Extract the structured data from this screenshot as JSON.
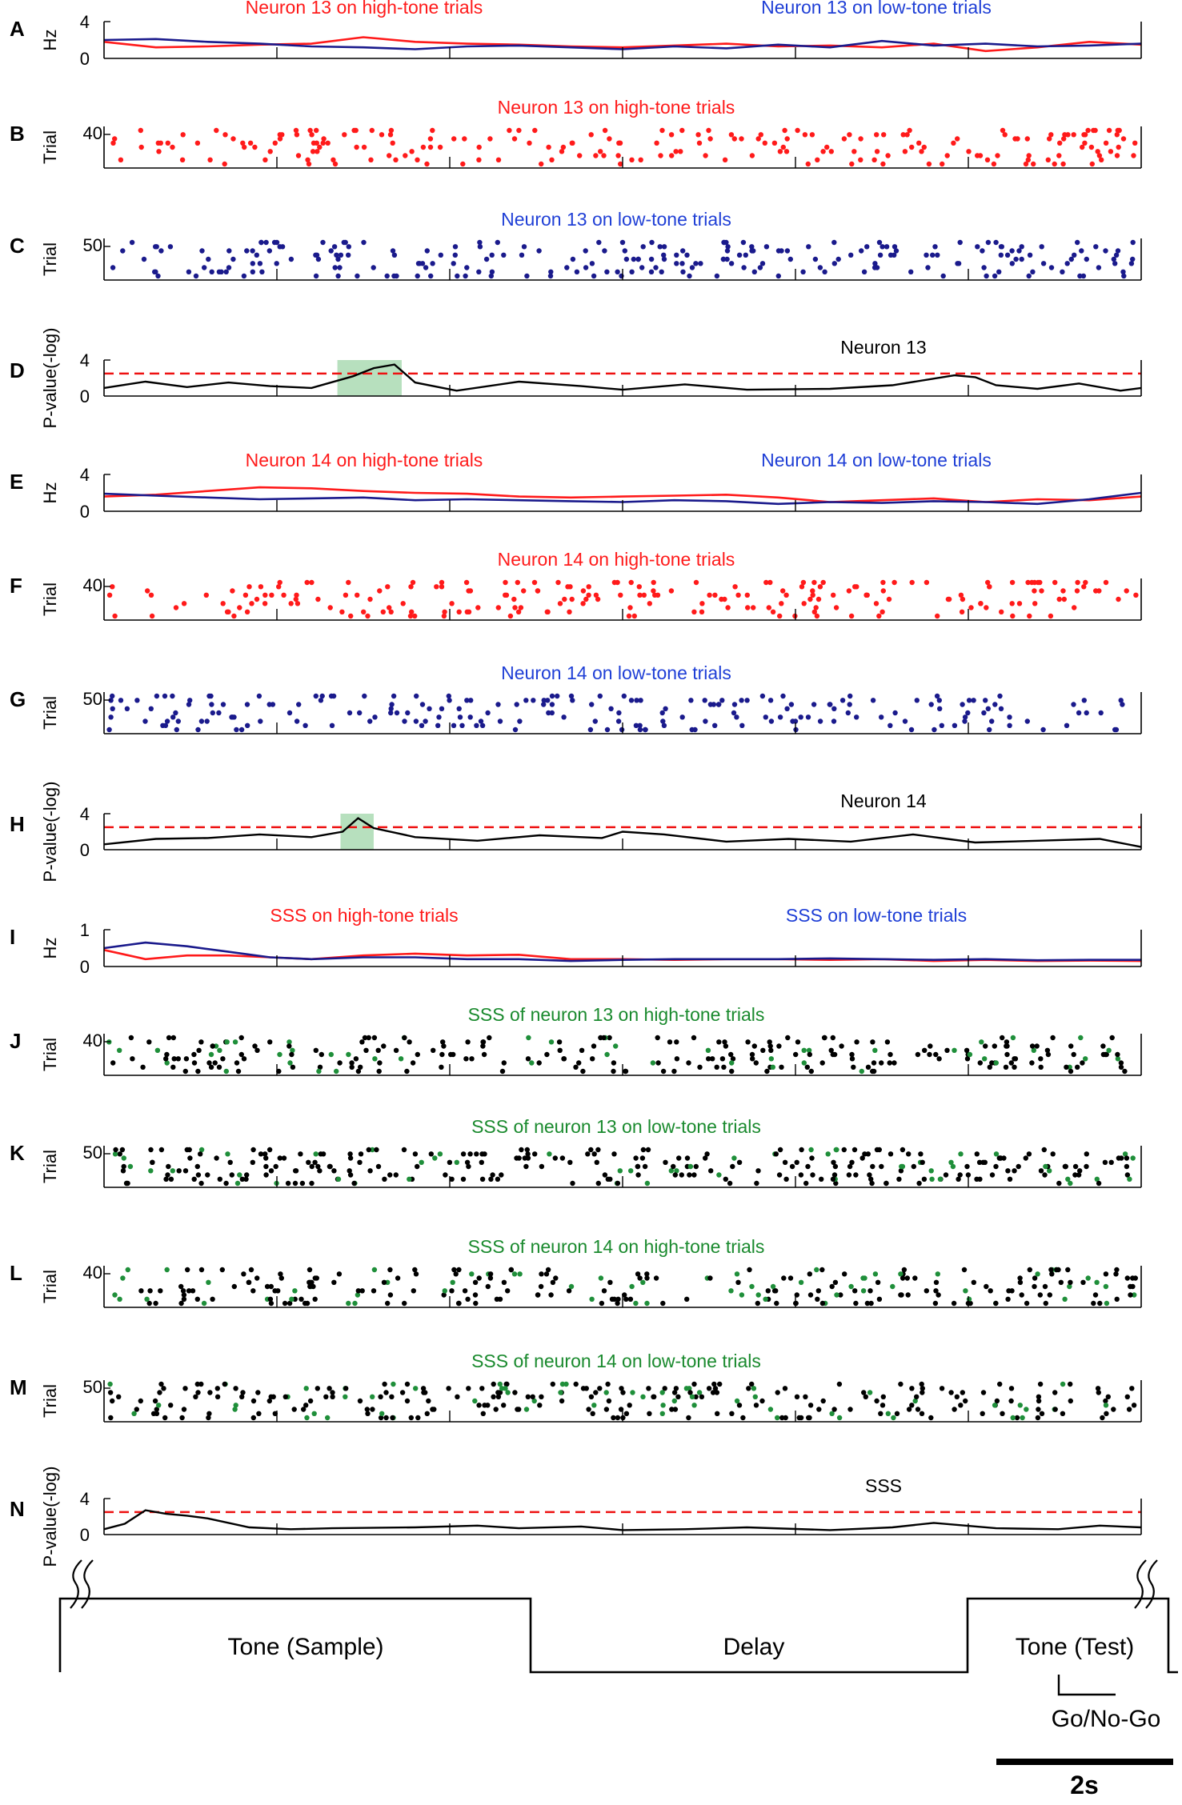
{
  "colors": {
    "high": "#ff1a1a",
    "low": "#1a1a8c",
    "low_title": "#1f3fd6",
    "sss_title": "#1a8a2e",
    "sss_green": "#1f8f3a",
    "black": "#000000",
    "threshold": "#ee1111",
    "highlight": "#9fd6a8"
  },
  "n_time_divisions": 6,
  "panels": [
    {
      "letter": "A",
      "kind": "rate",
      "ylabel": "Hz",
      "ytick_top": "4",
      "ytick_bottom": "0",
      "ylim": [
        0,
        4
      ],
      "title_left": "Neuron 13 on high-tone trials",
      "title_right": "Neuron 13 on low-tone trials",
      "series": [
        {
          "name": "Neuron 13 on high-tone trials",
          "color": "#ff1a1a",
          "x": [
            0.0,
            0.05,
            0.1,
            0.15,
            0.2,
            0.25,
            0.3,
            0.35,
            0.4,
            0.45,
            0.5,
            0.55,
            0.6,
            0.65,
            0.7,
            0.75,
            0.8,
            0.85,
            0.9,
            0.95,
            1.0
          ],
          "y": [
            1.8,
            1.2,
            1.3,
            1.5,
            1.6,
            2.3,
            1.8,
            1.6,
            1.5,
            1.3,
            1.2,
            1.4,
            1.6,
            1.3,
            1.4,
            1.2,
            1.6,
            0.8,
            1.2,
            1.8,
            1.5
          ]
        },
        {
          "name": "Neuron 13 on low-tone trials",
          "color": "#1a1a8c",
          "x": [
            0.0,
            0.05,
            0.1,
            0.15,
            0.2,
            0.25,
            0.3,
            0.35,
            0.4,
            0.45,
            0.5,
            0.55,
            0.6,
            0.65,
            0.7,
            0.75,
            0.8,
            0.85,
            0.9,
            0.95,
            1.0
          ],
          "y": [
            2.0,
            2.1,
            1.8,
            1.6,
            1.3,
            1.2,
            1.0,
            1.3,
            1.4,
            1.2,
            1.0,
            1.3,
            1.1,
            1.5,
            1.2,
            1.9,
            1.4,
            1.6,
            1.3,
            1.4,
            1.6
          ]
        }
      ]
    },
    {
      "letter": "B",
      "kind": "raster",
      "ylabel": "Trial",
      "ytick_top": "40",
      "n_trials": 40,
      "title_center": "Neuron 13 on high-tone trials",
      "title_color": "#ff1a1a",
      "color_main": "#ff1a1a",
      "density": 210,
      "seed": 13
    },
    {
      "letter": "C",
      "kind": "raster",
      "ylabel": "Trial",
      "ytick_top": "50",
      "n_trials": 50,
      "title_center": "Neuron 13 on low-tone trials",
      "title_color": "#1f3fd6",
      "color_main": "#1a1a8c",
      "density": 240,
      "seed": 31
    },
    {
      "letter": "D",
      "kind": "pvalue",
      "ylabel": "P-value(-log)",
      "ytick_top": "4",
      "ytick_bottom": "0",
      "ylim": [
        0,
        4
      ],
      "label": "Neuron 13",
      "threshold": 2.5,
      "highlight": [
        0.225,
        0.287
      ],
      "series": {
        "x": [
          0.0,
          0.04,
          0.08,
          0.12,
          0.16,
          0.2,
          0.24,
          0.26,
          0.28,
          0.3,
          0.34,
          0.4,
          0.46,
          0.5,
          0.56,
          0.62,
          0.7,
          0.76,
          0.82,
          0.84,
          0.86,
          0.9,
          0.94,
          0.98,
          1.0
        ],
        "y": [
          0.9,
          1.6,
          1.0,
          1.5,
          1.1,
          0.9,
          2.2,
          3.1,
          3.5,
          1.5,
          0.6,
          1.6,
          1.1,
          0.7,
          1.3,
          0.7,
          0.8,
          1.2,
          2.3,
          2.1,
          1.2,
          0.8,
          1.4,
          0.6,
          0.9
        ]
      }
    },
    {
      "letter": "E",
      "kind": "rate",
      "ylabel": "Hz",
      "ytick_top": "4",
      "ytick_bottom": "0",
      "ylim": [
        0,
        4
      ],
      "title_left": "Neuron 14 on high-tone trials",
      "title_right": "Neuron 14 on low-tone trials",
      "series": [
        {
          "name": "Neuron 14 on high-tone trials",
          "color": "#ff1a1a",
          "x": [
            0.0,
            0.05,
            0.1,
            0.15,
            0.2,
            0.25,
            0.3,
            0.35,
            0.4,
            0.45,
            0.5,
            0.55,
            0.6,
            0.65,
            0.7,
            0.75,
            0.8,
            0.85,
            0.9,
            0.95,
            1.0
          ],
          "y": [
            1.6,
            1.8,
            2.2,
            2.6,
            2.5,
            2.2,
            2.0,
            1.9,
            1.6,
            1.5,
            1.6,
            1.7,
            1.8,
            1.5,
            1.0,
            1.2,
            1.4,
            1.0,
            1.3,
            1.2,
            1.6
          ]
        },
        {
          "name": "Neuron 14 on low-tone trials",
          "color": "#1a1a8c",
          "x": [
            0.0,
            0.05,
            0.1,
            0.15,
            0.2,
            0.25,
            0.3,
            0.35,
            0.4,
            0.45,
            0.5,
            0.55,
            0.6,
            0.65,
            0.7,
            0.75,
            0.8,
            0.85,
            0.9,
            0.95,
            1.0
          ],
          "y": [
            1.9,
            1.7,
            1.5,
            1.3,
            1.4,
            1.5,
            1.2,
            1.3,
            1.2,
            1.1,
            1.0,
            1.2,
            1.1,
            0.8,
            1.0,
            0.9,
            1.1,
            1.0,
            0.8,
            1.3,
            2.0
          ]
        }
      ]
    },
    {
      "letter": "F",
      "kind": "raster",
      "ylabel": "Trial",
      "ytick_top": "40",
      "n_trials": 40,
      "title_center": "Neuron 14 on high-tone trials",
      "title_color": "#ff1a1a",
      "color_main": "#ff1a1a",
      "density": 210,
      "seed": 47
    },
    {
      "letter": "G",
      "kind": "raster",
      "ylabel": "Trial",
      "ytick_top": "50",
      "n_trials": 50,
      "title_center": "Neuron 14 on low-tone trials",
      "title_color": "#1f3fd6",
      "color_main": "#1a1a8c",
      "density": 210,
      "seed": 59
    },
    {
      "letter": "H",
      "kind": "pvalue",
      "ylabel": "P-value(-log)",
      "ytick_top": "4",
      "ytick_bottom": "0",
      "ylim": [
        0,
        4
      ],
      "label": "Neuron 14",
      "threshold": 2.5,
      "highlight": [
        0.228,
        0.26
      ],
      "series": {
        "x": [
          0.0,
          0.05,
          0.1,
          0.15,
          0.2,
          0.23,
          0.245,
          0.26,
          0.3,
          0.36,
          0.42,
          0.48,
          0.5,
          0.54,
          0.6,
          0.66,
          0.72,
          0.78,
          0.84,
          0.9,
          0.96,
          1.0
        ],
        "y": [
          0.6,
          1.2,
          1.3,
          1.7,
          1.4,
          2.0,
          3.5,
          2.4,
          1.4,
          1.0,
          1.6,
          1.3,
          2.0,
          1.7,
          0.9,
          1.2,
          0.9,
          1.7,
          0.8,
          1.0,
          1.2,
          0.3
        ]
      }
    },
    {
      "letter": "I",
      "kind": "rate",
      "ylabel": "Hz",
      "ytick_top": "1",
      "ytick_bottom": "0",
      "ylim": [
        0,
        1
      ],
      "title_left": "SSS on high-tone trials",
      "title_right": "SSS on low-tone trials",
      "series": [
        {
          "name": "SSS on high-tone trials",
          "color": "#ff1a1a",
          "x": [
            0.0,
            0.04,
            0.08,
            0.12,
            0.16,
            0.2,
            0.25,
            0.3,
            0.35,
            0.4,
            0.45,
            0.5,
            0.55,
            0.6,
            0.65,
            0.7,
            0.75,
            0.8,
            0.85,
            0.9,
            0.95,
            1.0
          ],
          "y": [
            0.45,
            0.2,
            0.3,
            0.3,
            0.25,
            0.2,
            0.3,
            0.35,
            0.3,
            0.32,
            0.2,
            0.2,
            0.18,
            0.2,
            0.2,
            0.18,
            0.2,
            0.15,
            0.18,
            0.15,
            0.16,
            0.15
          ]
        },
        {
          "name": "SSS on low-tone trials",
          "color": "#1a1a8c",
          "x": [
            0.0,
            0.04,
            0.08,
            0.12,
            0.16,
            0.2,
            0.25,
            0.3,
            0.35,
            0.4,
            0.45,
            0.5,
            0.55,
            0.6,
            0.65,
            0.7,
            0.75,
            0.8,
            0.85,
            0.9,
            0.95,
            1.0
          ],
          "y": [
            0.5,
            0.65,
            0.55,
            0.4,
            0.25,
            0.2,
            0.25,
            0.25,
            0.2,
            0.2,
            0.15,
            0.18,
            0.2,
            0.2,
            0.2,
            0.22,
            0.2,
            0.18,
            0.2,
            0.17,
            0.18,
            0.18
          ]
        }
      ]
    },
    {
      "letter": "J",
      "kind": "raster_sss",
      "ylabel": "Trial",
      "ytick_top": "40",
      "n_trials": 40,
      "title_center": "SSS of neuron 13 on high-tone trials",
      "title_color": "#1a8a2e",
      "color_main": "#000000",
      "color_alt": "#1f8f3a",
      "density": 260,
      "green_frac": 0.18,
      "seed": 71
    },
    {
      "letter": "K",
      "kind": "raster_sss",
      "ylabel": "Trial",
      "ytick_top": "50",
      "n_trials": 50,
      "title_center": "SSS of neuron 13 on low-tone trials",
      "title_color": "#1a8a2e",
      "color_main": "#000000",
      "color_alt": "#1f8f3a",
      "density": 300,
      "green_frac": 0.2,
      "seed": 83
    },
    {
      "letter": "L",
      "kind": "raster_sss",
      "ylabel": "Trial",
      "ytick_top": "40",
      "n_trials": 40,
      "title_center": "SSS of neuron 14 on high-tone trials",
      "title_color": "#1a8a2e",
      "color_main": "#000000",
      "color_alt": "#1f8f3a",
      "density": 260,
      "green_frac": 0.18,
      "seed": 97
    },
    {
      "letter": "M",
      "kind": "raster_sss",
      "ylabel": "Trial",
      "ytick_top": "50",
      "n_trials": 50,
      "title_center": "SSS of neuron 14 on low-tone trials",
      "title_color": "#1a8a2e",
      "color_main": "#000000",
      "color_alt": "#1f8f3a",
      "density": 280,
      "green_frac": 0.2,
      "seed": 101
    },
    {
      "letter": "N",
      "kind": "pvalue",
      "ylabel": "P-value(-log)",
      "ytick_top": "4",
      "ytick_bottom": "0",
      "ylim": [
        0,
        4
      ],
      "label": "SSS",
      "threshold": 2.5,
      "highlight": null,
      "series": {
        "x": [
          0.0,
          0.02,
          0.04,
          0.06,
          0.08,
          0.1,
          0.14,
          0.18,
          0.22,
          0.3,
          0.36,
          0.4,
          0.46,
          0.5,
          0.56,
          0.62,
          0.7,
          0.76,
          0.8,
          0.86,
          0.92,
          0.96,
          1.0
        ],
        "y": [
          0.6,
          1.2,
          2.7,
          2.3,
          2.1,
          1.8,
          0.8,
          0.6,
          0.7,
          0.8,
          1.0,
          0.7,
          0.9,
          0.5,
          0.6,
          0.8,
          0.5,
          0.8,
          1.3,
          0.7,
          0.6,
          1.0,
          0.8
        ]
      }
    }
  ],
  "protocol": {
    "phases": [
      "Tone (Sample)",
      "Delay",
      "Tone (Test)"
    ],
    "go_label": "Go/No-Go",
    "scale_label": "2s"
  },
  "chart_data": [
    {
      "type": "line",
      "title": "",
      "ylabel": "Hz",
      "ylim": [
        0,
        4
      ],
      "series": [
        {
          "name": "Neuron 13 on high-tone trials",
          "x": [
            0,
            0.25,
            0.5,
            0.75,
            1.0
          ],
          "values": [
            1.8,
            2.3,
            1.2,
            1.2,
            1.5
          ]
        },
        {
          "name": "Neuron 13 on low-tone trials",
          "x": [
            0,
            0.25,
            0.5,
            0.75,
            1.0
          ],
          "values": [
            2.0,
            1.2,
            1.0,
            1.9,
            1.6
          ]
        }
      ]
    },
    {
      "type": "scatter",
      "title": "Neuron 13 on high-tone trials",
      "ylabel": "Trial",
      "ylim": [
        0,
        40
      ]
    },
    {
      "type": "scatter",
      "title": "Neuron 13 on low-tone trials",
      "ylabel": "Trial",
      "ylim": [
        0,
        50
      ]
    },
    {
      "type": "line",
      "title": "Neuron 13",
      "ylabel": "P-value(-log)",
      "ylim": [
        0,
        4
      ],
      "threshold": 2.5
    },
    {
      "type": "line",
      "title": "",
      "ylabel": "Hz",
      "ylim": [
        0,
        4
      ],
      "series": [
        {
          "name": "Neuron 14 on high-tone trials",
          "x": [
            0,
            0.25,
            0.5,
            0.75,
            1.0
          ],
          "values": [
            1.6,
            2.2,
            1.6,
            1.2,
            1.6
          ]
        },
        {
          "name": "Neuron 14 on low-tone trials",
          "x": [
            0,
            0.25,
            0.5,
            0.75,
            1.0
          ],
          "values": [
            1.9,
            1.5,
            1.0,
            0.9,
            2.0
          ]
        }
      ]
    },
    {
      "type": "scatter",
      "title": "Neuron 14 on high-tone trials",
      "ylabel": "Trial",
      "ylim": [
        0,
        40
      ]
    },
    {
      "type": "scatter",
      "title": "Neuron 14 on low-tone trials",
      "ylabel": "Trial",
      "ylim": [
        0,
        50
      ]
    },
    {
      "type": "line",
      "title": "Neuron 14",
      "ylabel": "P-value(-log)",
      "ylim": [
        0,
        4
      ],
      "threshold": 2.5
    },
    {
      "type": "line",
      "title": "",
      "ylabel": "Hz",
      "ylim": [
        0,
        1
      ],
      "series": [
        {
          "name": "SSS on high-tone trials",
          "x": [
            0,
            0.25,
            0.5,
            0.75,
            1.0
          ],
          "values": [
            0.45,
            0.3,
            0.2,
            0.2,
            0.15
          ]
        },
        {
          "name": "SSS on low-tone trials",
          "x": [
            0,
            0.25,
            0.5,
            0.75,
            1.0
          ],
          "values": [
            0.5,
            0.25,
            0.18,
            0.2,
            0.18
          ]
        }
      ]
    },
    {
      "type": "scatter",
      "title": "SSS of neuron 13 on high-tone trials",
      "ylabel": "Trial",
      "ylim": [
        0,
        40
      ]
    },
    {
      "type": "scatter",
      "title": "SSS of neuron 13 on low-tone trials",
      "ylabel": "Trial",
      "ylim": [
        0,
        50
      ]
    },
    {
      "type": "scatter",
      "title": "SSS of neuron 14 on high-tone trials",
      "ylabel": "Trial",
      "ylim": [
        0,
        40
      ]
    },
    {
      "type": "scatter",
      "title": "SSS of neuron 14 on low-tone trials",
      "ylabel": "Trial",
      "ylim": [
        0,
        50
      ]
    },
    {
      "type": "line",
      "title": "SSS",
      "ylabel": "P-value(-log)",
      "ylim": [
        0,
        4
      ],
      "threshold": 2.5
    }
  ]
}
